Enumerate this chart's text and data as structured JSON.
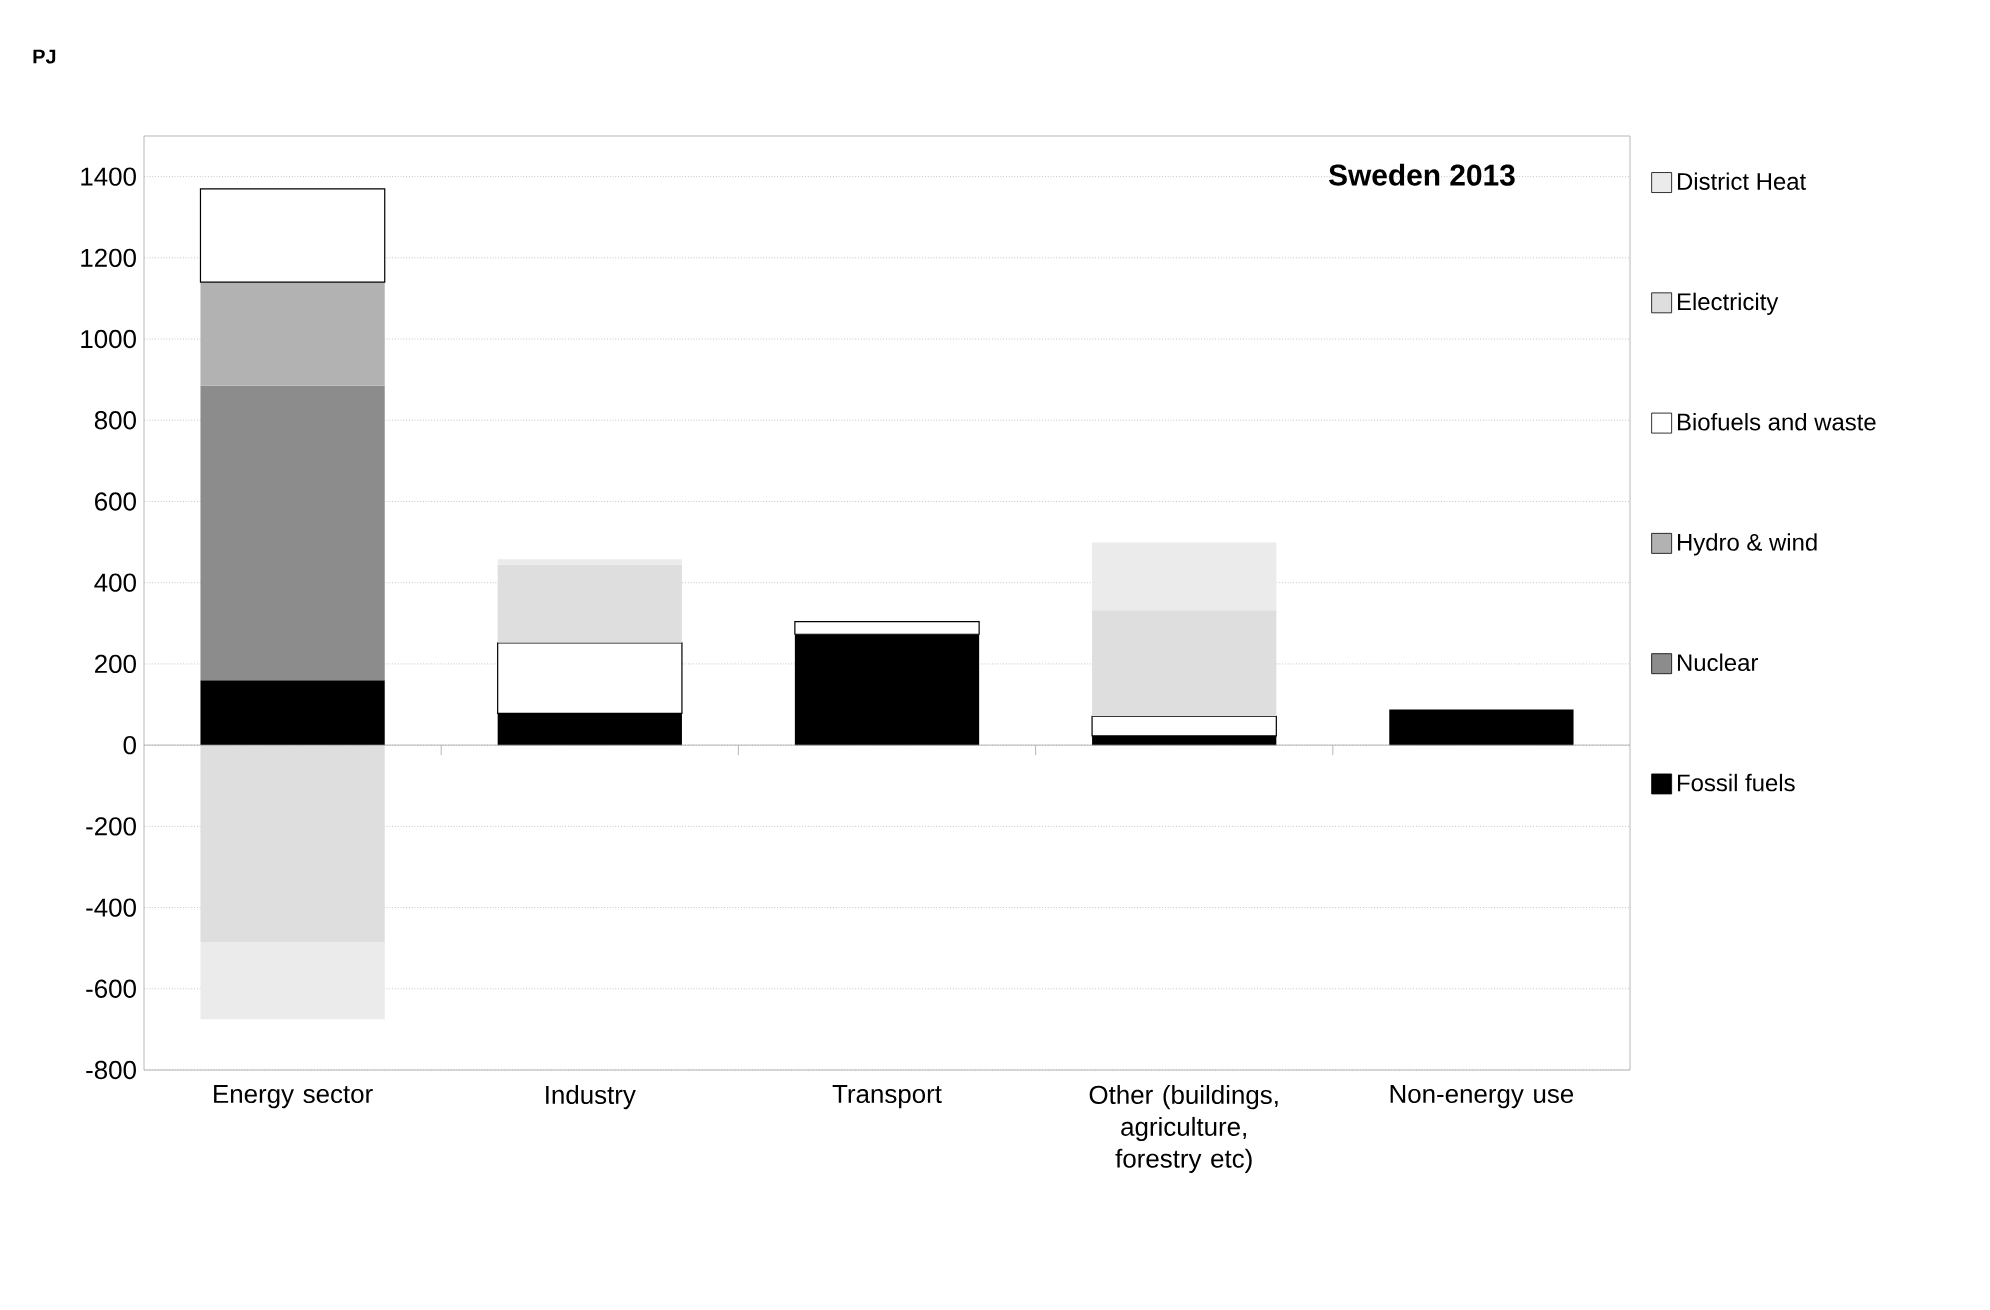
{
  "chart_data": {
    "type": "bar",
    "title": "Sweden 2013",
    "ylabel": "PJ",
    "stacked": true,
    "categories": [
      "Energy sector",
      "Industry",
      "Transport",
      "Other (buildings, agriculture, forestry etc)",
      "Non-energy use"
    ],
    "series": [
      {
        "name": "Fossil fuels",
        "color": "#000000",
        "values": [
          160,
          78,
          273,
          23,
          88
        ]
      },
      {
        "name": "Nuclear",
        "color": "#8c8c8c",
        "values": [
          725,
          null,
          null,
          null,
          null
        ]
      },
      {
        "name": "Hydro & wind",
        "color": "#b2b2b2",
        "values": [
          255,
          null,
          null,
          null,
          null
        ]
      },
      {
        "name": "Biofuels and waste",
        "color": "#ffffff",
        "values": [
          230,
          174,
          31,
          48,
          null
        ]
      },
      {
        "name": "Electricity",
        "color": "#dedede",
        "values": [
          -485,
          192,
          null,
          261,
          null
        ]
      },
      {
        "name": "District Heat",
        "color": "#ebebeb",
        "values": [
          -190,
          14,
          null,
          167,
          null
        ]
      }
    ],
    "ylim": [
      -800,
      1500
    ],
    "yticks": [
      -800,
      -600,
      -400,
      -200,
      0,
      200,
      400,
      600,
      800,
      1000,
      1200,
      1400
    ],
    "grid": "y",
    "legend": "right"
  }
}
